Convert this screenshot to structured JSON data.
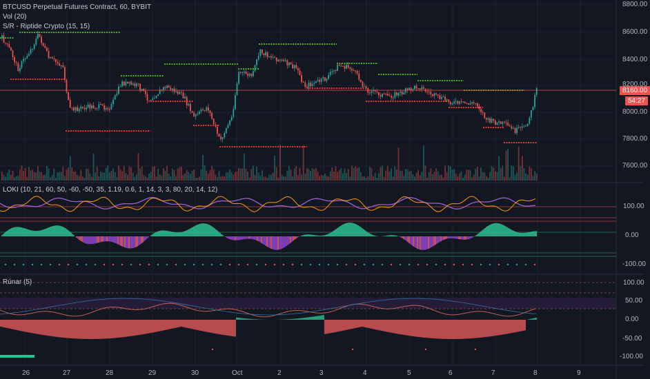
{
  "header": {
    "title": "BTCUSD Perpetual Futures Contract, 60, BYBIT",
    "vol": "Vol (20)",
    "sr": "S/R - Riptide Crypto (15, 15)"
  },
  "price_axis": [
    "8800.00",
    "8600.00",
    "8400.00",
    "8200.00",
    "8000.00",
    "7800.00",
    "7600.00"
  ],
  "last_price": "8160.00",
  "countdown": "54:27",
  "loki": {
    "label": "LOKI (10, 21, 60, 50, -60, -50, 35, 1.19, 0.6, 1, 14, 3, 3, 80, 20, 14, 12)",
    "axis": [
      "100.00",
      "0.00",
      "-100.00"
    ]
  },
  "runar": {
    "label": "Rúnar (5)",
    "axis": [
      "100.00",
      "50.00",
      "0.00",
      "-50.00",
      "-100.00"
    ]
  },
  "time_axis": [
    "26",
    "27",
    "28",
    "29",
    "30",
    "Oct",
    "2",
    "3",
    "4",
    "5",
    "6",
    "7",
    "8",
    "9"
  ],
  "colors": {
    "background": "#131722",
    "up": "#26a69a",
    "down": "#ef5350",
    "resistance": "#4caf1a",
    "support": "#e53935",
    "purple": "#9c5fd6",
    "orange": "#ff9800"
  }
}
